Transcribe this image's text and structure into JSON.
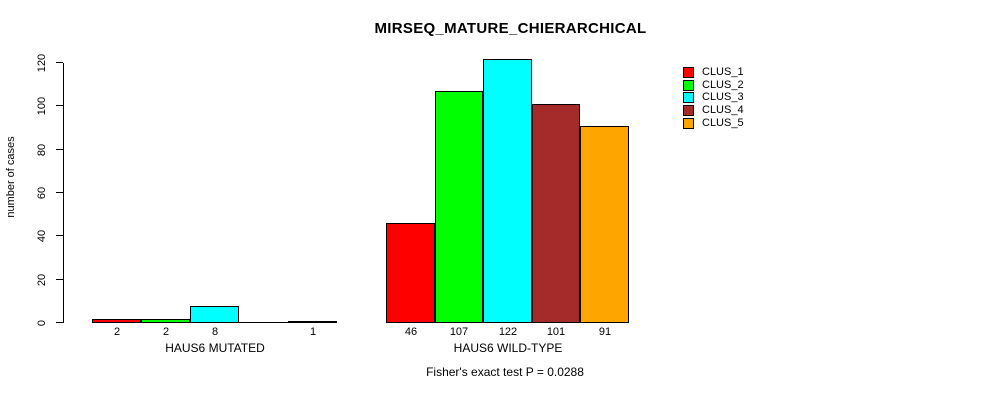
{
  "chart_data": {
    "type": "bar",
    "title": "MIRSEQ_MATURE_CHIERARCHICAL",
    "ylabel": "number of cases",
    "xlabel": "",
    "annotation": "Fisher's exact test P = 0.0288",
    "yticks": [
      0,
      20,
      40,
      60,
      80,
      100,
      120
    ],
    "ylim": [
      0,
      122
    ],
    "grid": false,
    "legend_position": "top-right",
    "categories": [
      "HAUS6 MUTATED",
      "HAUS6 WILD-TYPE"
    ],
    "series": [
      {
        "name": "CLUS_1",
        "color": "#FF0000",
        "values": [
          2,
          46
        ]
      },
      {
        "name": "CLUS_2",
        "color": "#00FF00",
        "values": [
          2,
          107
        ]
      },
      {
        "name": "CLUS_3",
        "color": "#00FFFF",
        "values": [
          8,
          122
        ]
      },
      {
        "name": "CLUS_4",
        "color": "#A52A2A",
        "values": [
          0,
          101
        ]
      },
      {
        "name": "CLUS_5",
        "color": "#FFA500",
        "values": [
          1,
          91
        ]
      }
    ],
    "bar_value_labels": [
      [
        "2",
        "2",
        "8",
        "",
        "1"
      ],
      [
        "46",
        "107",
        "122",
        "101",
        "91"
      ]
    ]
  }
}
